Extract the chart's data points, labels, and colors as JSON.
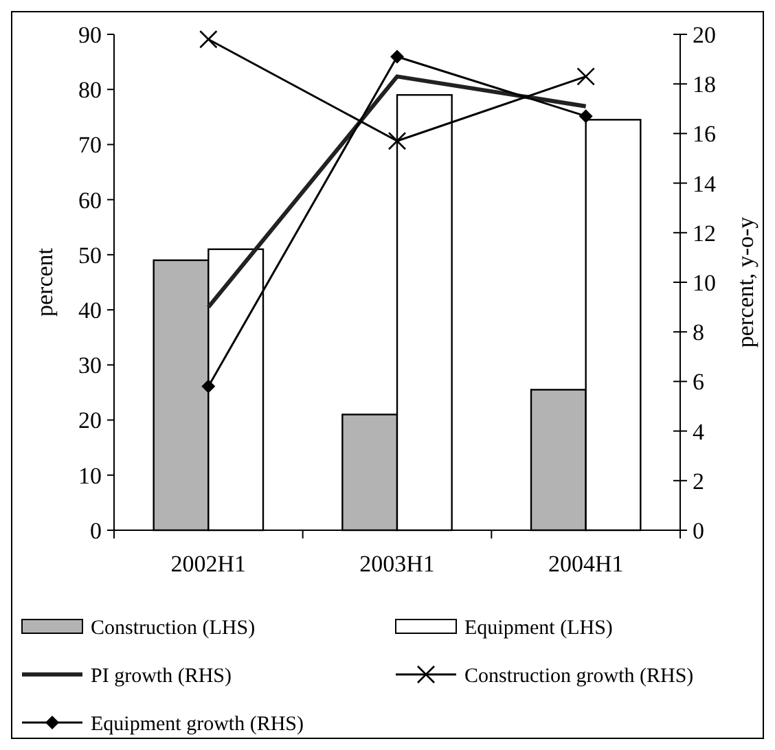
{
  "chart_data": {
    "type": "bar",
    "categories": [
      "2002H1",
      "2003H1",
      "2004H1"
    ],
    "ylabel": "percent",
    "y2label": "percent, y-o-y",
    "ylim": [
      0,
      90
    ],
    "yticks": [
      0,
      10,
      20,
      30,
      40,
      50,
      60,
      70,
      80,
      90
    ],
    "y2lim": [
      0,
      20
    ],
    "y2ticks": [
      0,
      2,
      4,
      6,
      8,
      10,
      12,
      14,
      16,
      18,
      20
    ],
    "grid": false,
    "legend": "bottom",
    "series": [
      {
        "name": "Construction (LHS)",
        "color": "#b3b3b3",
        "values": [
          49,
          21,
          25.5
        ]
      },
      {
        "name": "Equipment (LHS)",
        "color": "#ffffff",
        "values": [
          51,
          79,
          74.5
        ]
      },
      {
        "name": "PI growth (RHS)",
        "type": "line",
        "axis": "y2",
        "marker": "none",
        "color": "#222222",
        "values": [
          9.0,
          18.3,
          17.1
        ]
      },
      {
        "name": "Construction growth (RHS)",
        "type": "line",
        "axis": "y2",
        "marker": "cross",
        "color": "#000000",
        "values": [
          19.8,
          15.7,
          18.3
        ]
      },
      {
        "name": "Equipment growth (RHS)",
        "type": "line",
        "axis": "y2",
        "marker": "diamond",
        "color": "#000000",
        "values": [
          5.8,
          19.1,
          16.7
        ]
      }
    ]
  }
}
